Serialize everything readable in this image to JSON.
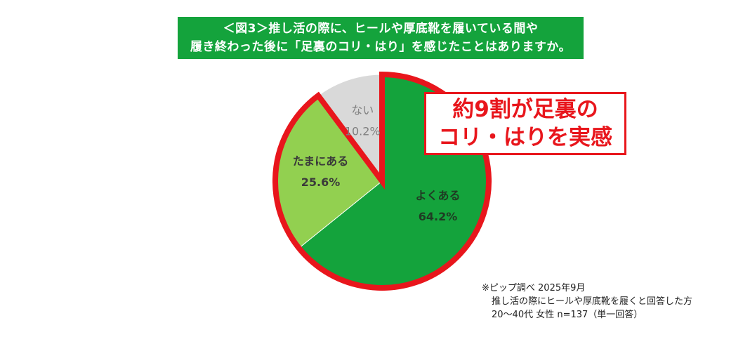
{
  "title": {
    "line1": "＜図3＞推し活の際に、ヒールや厚底靴を履いている間や",
    "line2": "履き終わった後に「足裏のコリ・はり」を感じたことはありますか。"
  },
  "chart_data": {
    "type": "pie",
    "title": "＜図3＞推し活の際に、ヒールや厚底靴を履いている間や履き終わった後に「足裏のコリ・はり」を感じたことはありますか。",
    "slices": [
      {
        "label": "よくある",
        "value": 64.2,
        "value_label": "64.2%",
        "color": "#14a33c"
      },
      {
        "label": "たまにある",
        "value": 25.6,
        "value_label": "25.6%",
        "color": "#92d050"
      },
      {
        "label": "ない",
        "value": 10.2,
        "value_label": "10.2%",
        "color": "#d9d9d9"
      }
    ],
    "highlight_color": "#e8161c",
    "highlighted_slices": [
      "よくある",
      "たまにある"
    ]
  },
  "callout": {
    "line1": "約9割が足裏の",
    "line2": "コリ・はりを実感"
  },
  "source": {
    "line1": "※ピップ調べ  2025年9月",
    "line2": "推し活の際にヒールや厚底靴を履くと回答した方",
    "line3": "20〜40代 女性 n=137（単一回答）"
  }
}
